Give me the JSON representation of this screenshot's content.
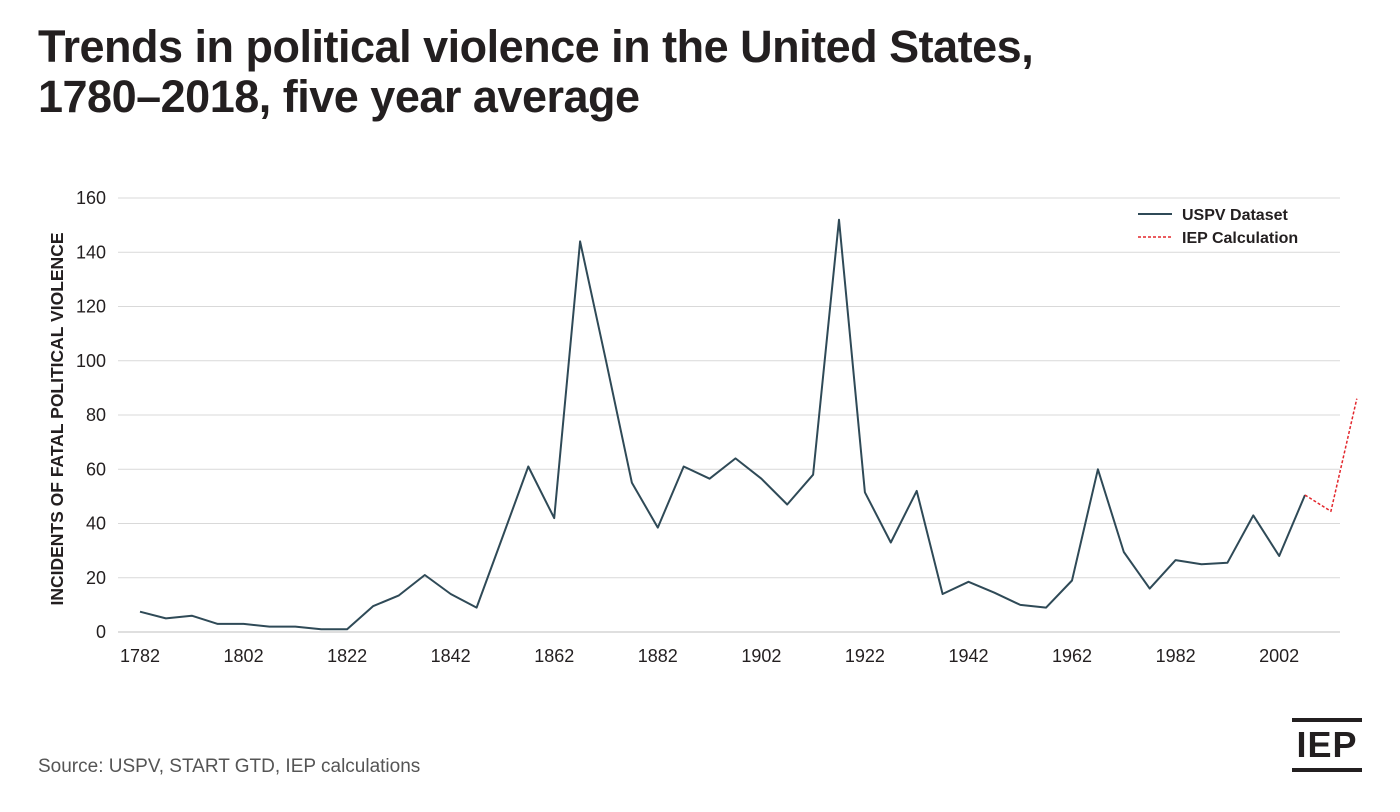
{
  "title_line1": "Trends in political violence in the United States,",
  "title_line2": "1780–2018, five year average",
  "source": "Source: USPV, START GTD, IEP calculations",
  "logo_text": "IEP",
  "chart_data": {
    "type": "line",
    "ylabel": "INCIDENTS OF FATAL POLITICAL VIOLENCE",
    "ylim": [
      0,
      160
    ],
    "xlim": [
      1780,
      2018
    ],
    "yticks": [
      0,
      20,
      40,
      60,
      80,
      100,
      120,
      140,
      160
    ],
    "xticks": [
      "1782",
      "1802",
      "1822",
      "1842",
      "1862",
      "1882",
      "1902",
      "1922",
      "1942",
      "1962",
      "1982",
      "2002"
    ],
    "grid": true,
    "legend_position": "top-right",
    "colors": {
      "uspv": "#2f4a57",
      "iep": "#e3262c",
      "grid": "#d9d9d9",
      "text": "#231f20"
    },
    "series": [
      {
        "name": "USPV Dataset",
        "style": "solid",
        "x": [
          1782,
          1787,
          1792,
          1797,
          1802,
          1807,
          1812,
          1817,
          1822,
          1827,
          1832,
          1837,
          1842,
          1847,
          1852,
          1857,
          1862,
          1867,
          1872,
          1877,
          1882,
          1887,
          1892,
          1897,
          1902,
          1907,
          1912,
          1917,
          1922,
          1927,
          1932,
          1937,
          1942,
          1947,
          1952,
          1957,
          1962,
          1967,
          1972,
          1977,
          1982,
          1987,
          1992,
          1997,
          2002,
          2007
        ],
        "y": [
          7.5,
          5,
          6,
          3,
          3,
          2,
          2,
          1,
          1,
          9.5,
          13.5,
          21,
          14,
          9,
          35,
          61,
          42,
          144,
          100,
          55,
          38.5,
          61,
          56.5,
          64,
          56.5,
          47,
          58,
          152,
          51.5,
          33,
          52,
          14,
          18.5,
          14.5,
          10,
          9,
          19,
          60,
          29.5,
          16,
          26.5,
          25,
          25.5,
          43,
          28,
          50.5
        ]
      },
      {
        "name": "IEP Calculation",
        "style": "dotted",
        "x": [
          2007,
          2012,
          2017
        ],
        "y": [
          50.5,
          44.5,
          86
        ]
      }
    ]
  }
}
